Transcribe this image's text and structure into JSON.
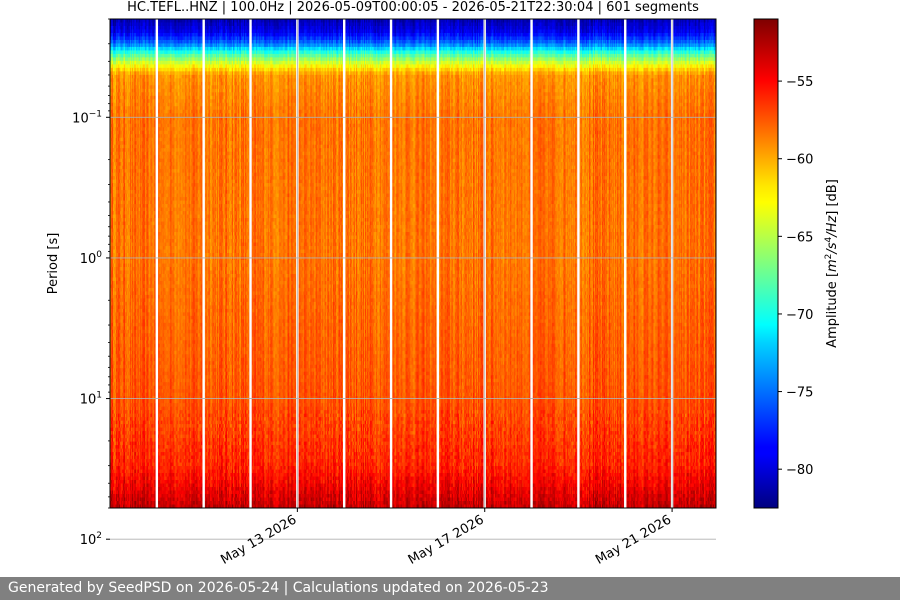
{
  "chart_data": {
    "type": "heatmap",
    "title": "HC.TEFL..HNZ | 100.0Hz | 2026-05-09T00:00:05 - 2026-05-21T22:30:04 | 601 segments",
    "ylabel": "Period [s]",
    "y_scale": "log",
    "y_inverted": true,
    "ylim": [
      0.02,
      60
    ],
    "y_ticks": [
      {
        "value": 0.1,
        "base": "10",
        "exp": "−1"
      },
      {
        "value": 1,
        "base": "10",
        "exp": "0"
      },
      {
        "value": 10,
        "base": "10",
        "exp": "1"
      },
      {
        "value": 100,
        "base": "10",
        "exp": "2"
      }
    ],
    "x_axis_type": "date",
    "xlim": [
      "2026-05-09T00:00:05",
      "2026-05-21T22:30:04"
    ],
    "x_ticks": [
      {
        "value": "2026-05-13",
        "label": "May 13 2026"
      },
      {
        "value": "2026-05-17",
        "label": "May 17 2026"
      },
      {
        "value": "2026-05-21",
        "label": "May 21 2026"
      }
    ],
    "segments": 601,
    "sampling_rate": "100.0Hz",
    "data_gaps": [
      "2026-05-10",
      "2026-05-11",
      "2026-05-12",
      "2026-05-13",
      "2026-05-14",
      "2026-05-15",
      "2026-05-16",
      "2026-05-17",
      "2026-05-18",
      "2026-05-19",
      "2026-05-20",
      "2026-05-21"
    ],
    "grid": true,
    "colormap": "jet",
    "colorbar": {
      "label": "Amplitude [m²/s⁴/Hz] [dB]",
      "label_parts": [
        "Amplitude [",
        "m",
        "2",
        "/s",
        "4",
        "/Hz",
        "] [dB]"
      ],
      "range": [
        -82.5,
        -51
      ],
      "ticks": [
        -55,
        -60,
        -65,
        -70,
        -75,
        -80
      ],
      "tick_labels": [
        "−55",
        "−60",
        "−65",
        "−70",
        "−75",
        "−80"
      ]
    },
    "amplitude_profile": [
      {
        "period": 0.02,
        "db": -81
      },
      {
        "period": 0.025,
        "db": -79
      },
      {
        "period": 0.03,
        "db": -75
      },
      {
        "period": 0.035,
        "db": -69
      },
      {
        "period": 0.042,
        "db": -63.5
      },
      {
        "period": 0.05,
        "db": -59.5
      },
      {
        "period": 0.1,
        "db": -58.5
      },
      {
        "period": 1,
        "db": -58.5
      },
      {
        "period": 10,
        "db": -57.5
      },
      {
        "period": 30,
        "db": -56
      },
      {
        "period": 60,
        "db": -53
      }
    ]
  },
  "footer": {
    "text": "Generated by SeedPSD on 2026-05-24 | Calculations updated on 2026-05-23"
  }
}
